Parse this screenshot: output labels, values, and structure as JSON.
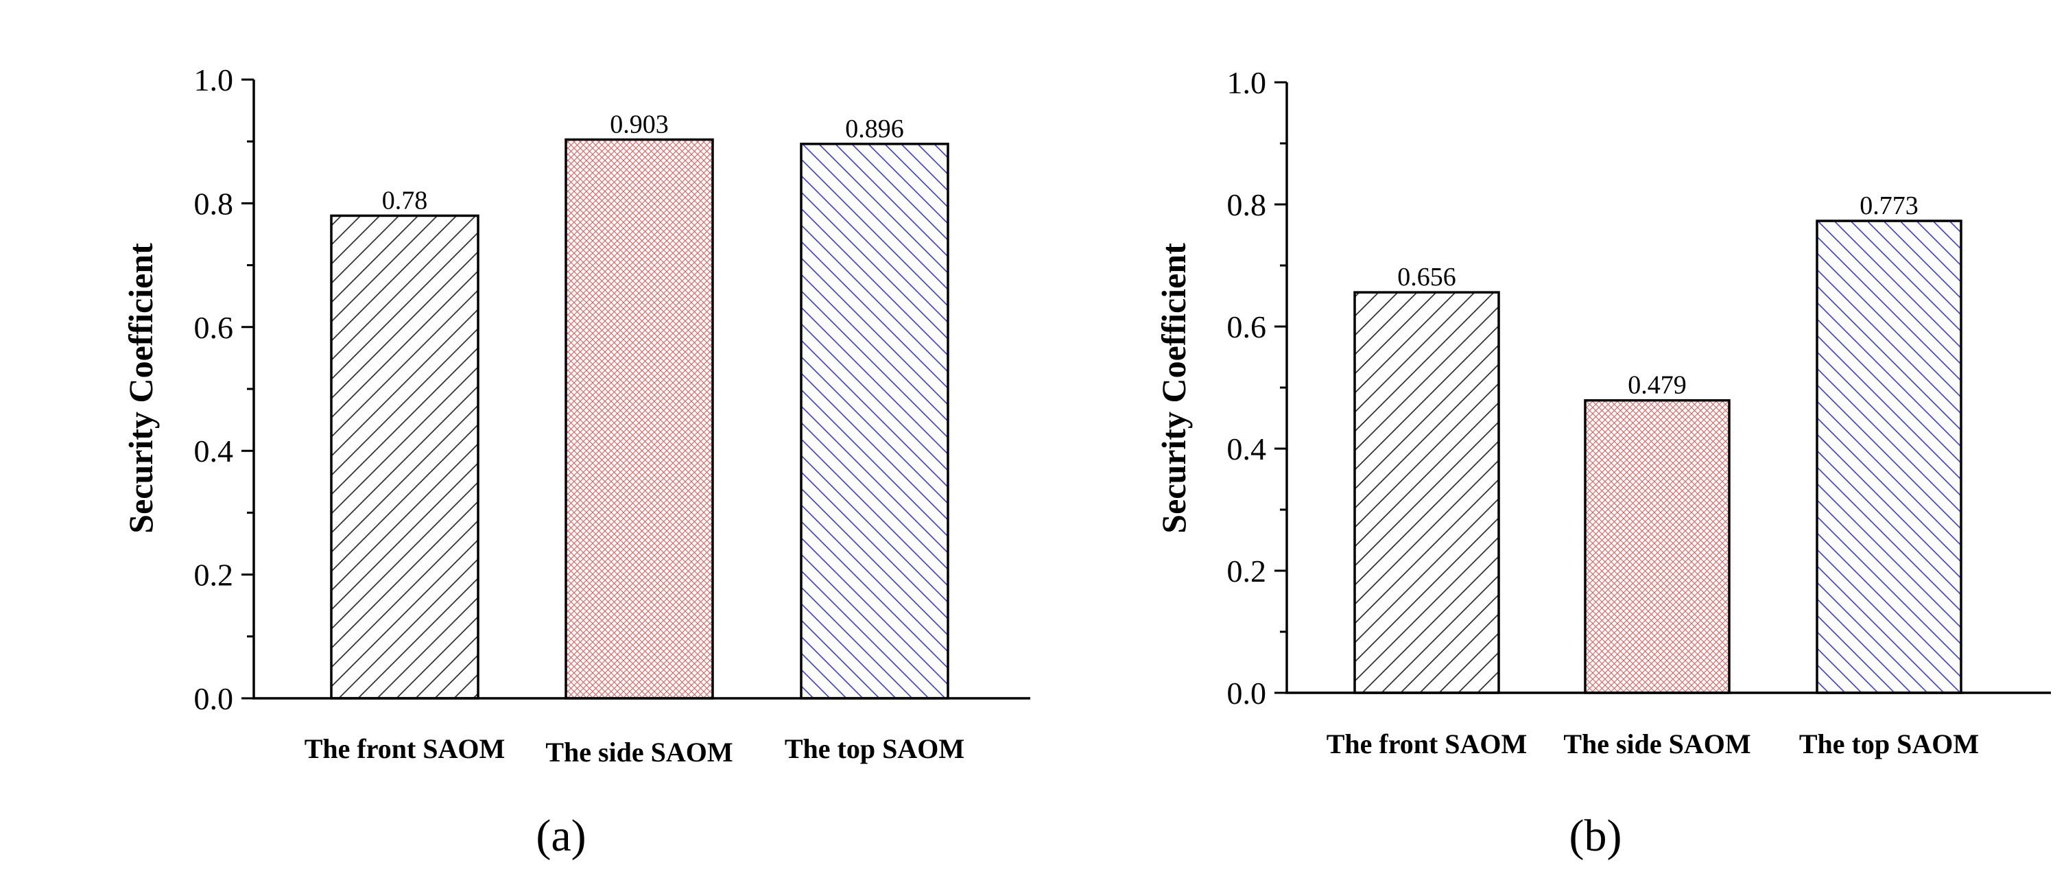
{
  "chart_data": [
    {
      "type": "bar",
      "panel_label": "(a)",
      "categories": [
        "The front SAOM",
        "The side SAOM",
        "The top SAOM"
      ],
      "values": [
        0.78,
        0.903,
        0.896
      ],
      "value_labels": [
        "0.78",
        "0.903",
        "0.896"
      ],
      "ylabel": "Security Coefficient",
      "xlabel": "",
      "ylim": [
        0,
        1.0
      ],
      "yticks": [
        "0.0",
        "0.2",
        "0.4",
        "0.6",
        "0.8",
        "1.0"
      ],
      "grid": false
    },
    {
      "type": "bar",
      "panel_label": "(b)",
      "categories": [
        "The front SAOM",
        "The side SAOM",
        "The top SAOM"
      ],
      "values": [
        0.656,
        0.479,
        0.773
      ],
      "value_labels": [
        "0.656",
        "0.479",
        "0.773"
      ],
      "ylabel": "Security Coefficient",
      "xlabel": "",
      "ylim": [
        0,
        1.0
      ],
      "yticks": [
        "0.0",
        "0.2",
        "0.4",
        "0.6",
        "0.8",
        "1.0"
      ],
      "grid": false
    }
  ],
  "bar_colors": {
    "front": "#333333",
    "side": "#e05a5a",
    "top": "#3a3ae0"
  }
}
